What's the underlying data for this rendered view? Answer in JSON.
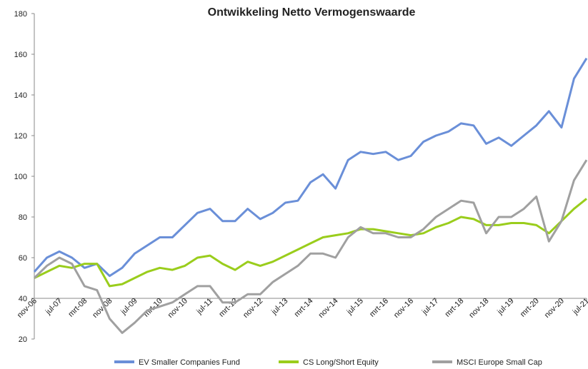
{
  "chart_data": {
    "type": "line",
    "title": "Ontwikkeling Netto Vermogenswaarde",
    "categories": [
      "nov-06",
      null,
      "jul-07",
      null,
      "mrt-08",
      null,
      "nov-08",
      null,
      "jul-09",
      null,
      "mrt-10",
      null,
      "nov-10",
      null,
      "jul-11",
      null,
      "mrt-12",
      null,
      "nov-12",
      null,
      "jul-13",
      null,
      "mrt-14",
      null,
      "nov-14",
      null,
      "jul-15",
      null,
      "mrt-16",
      null,
      "nov-16",
      null,
      "jul-17",
      null,
      "mrt-18",
      null,
      "nov-18",
      null,
      "jul-19",
      null,
      "mrt-20",
      null,
      "nov-20",
      null,
      "jul-21"
    ],
    "series": [
      {
        "name": "EV Smaller Companies Fund",
        "color": "#6a8fd8",
        "values": [
          53,
          60,
          63,
          60,
          55,
          57,
          51,
          55,
          62,
          66,
          70,
          70,
          76,
          82,
          84,
          78,
          78,
          84,
          79,
          82,
          87,
          88,
          97,
          101,
          94,
          108,
          112,
          111,
          112,
          108,
          110,
          117,
          120,
          122,
          126,
          125,
          116,
          119,
          115,
          120,
          125,
          132,
          124,
          148,
          158
        ]
      },
      {
        "name": "CS  Long/Short Equity",
        "color": "#9acd1c",
        "values": [
          50,
          53,
          56,
          55,
          57,
          57,
          46,
          47,
          50,
          53,
          55,
          54,
          56,
          60,
          61,
          57,
          54,
          58,
          56,
          58,
          61,
          64,
          67,
          70,
          71,
          72,
          74,
          74,
          73,
          72,
          71,
          72,
          75,
          77,
          80,
          79,
          76,
          76,
          77,
          77,
          76,
          72,
          78,
          84,
          89
        ]
      },
      {
        "name": "MSCI Europe Small Cap",
        "color": "#a0a0a0",
        "values": [
          50,
          56,
          60,
          57,
          46,
          44,
          30,
          23,
          28,
          34,
          36,
          38,
          42,
          46,
          46,
          38,
          38,
          42,
          42,
          48,
          52,
          56,
          62,
          62,
          60,
          70,
          75,
          72,
          72,
          70,
          70,
          74,
          80,
          84,
          88,
          87,
          72,
          80,
          80,
          84,
          90,
          68,
          78,
          98,
          108
        ]
      }
    ],
    "ylim": [
      20,
      180
    ],
    "yticks": [
      20,
      40,
      60,
      80,
      100,
      120,
      140,
      160,
      180
    ],
    "xaxis_at": 40
  }
}
